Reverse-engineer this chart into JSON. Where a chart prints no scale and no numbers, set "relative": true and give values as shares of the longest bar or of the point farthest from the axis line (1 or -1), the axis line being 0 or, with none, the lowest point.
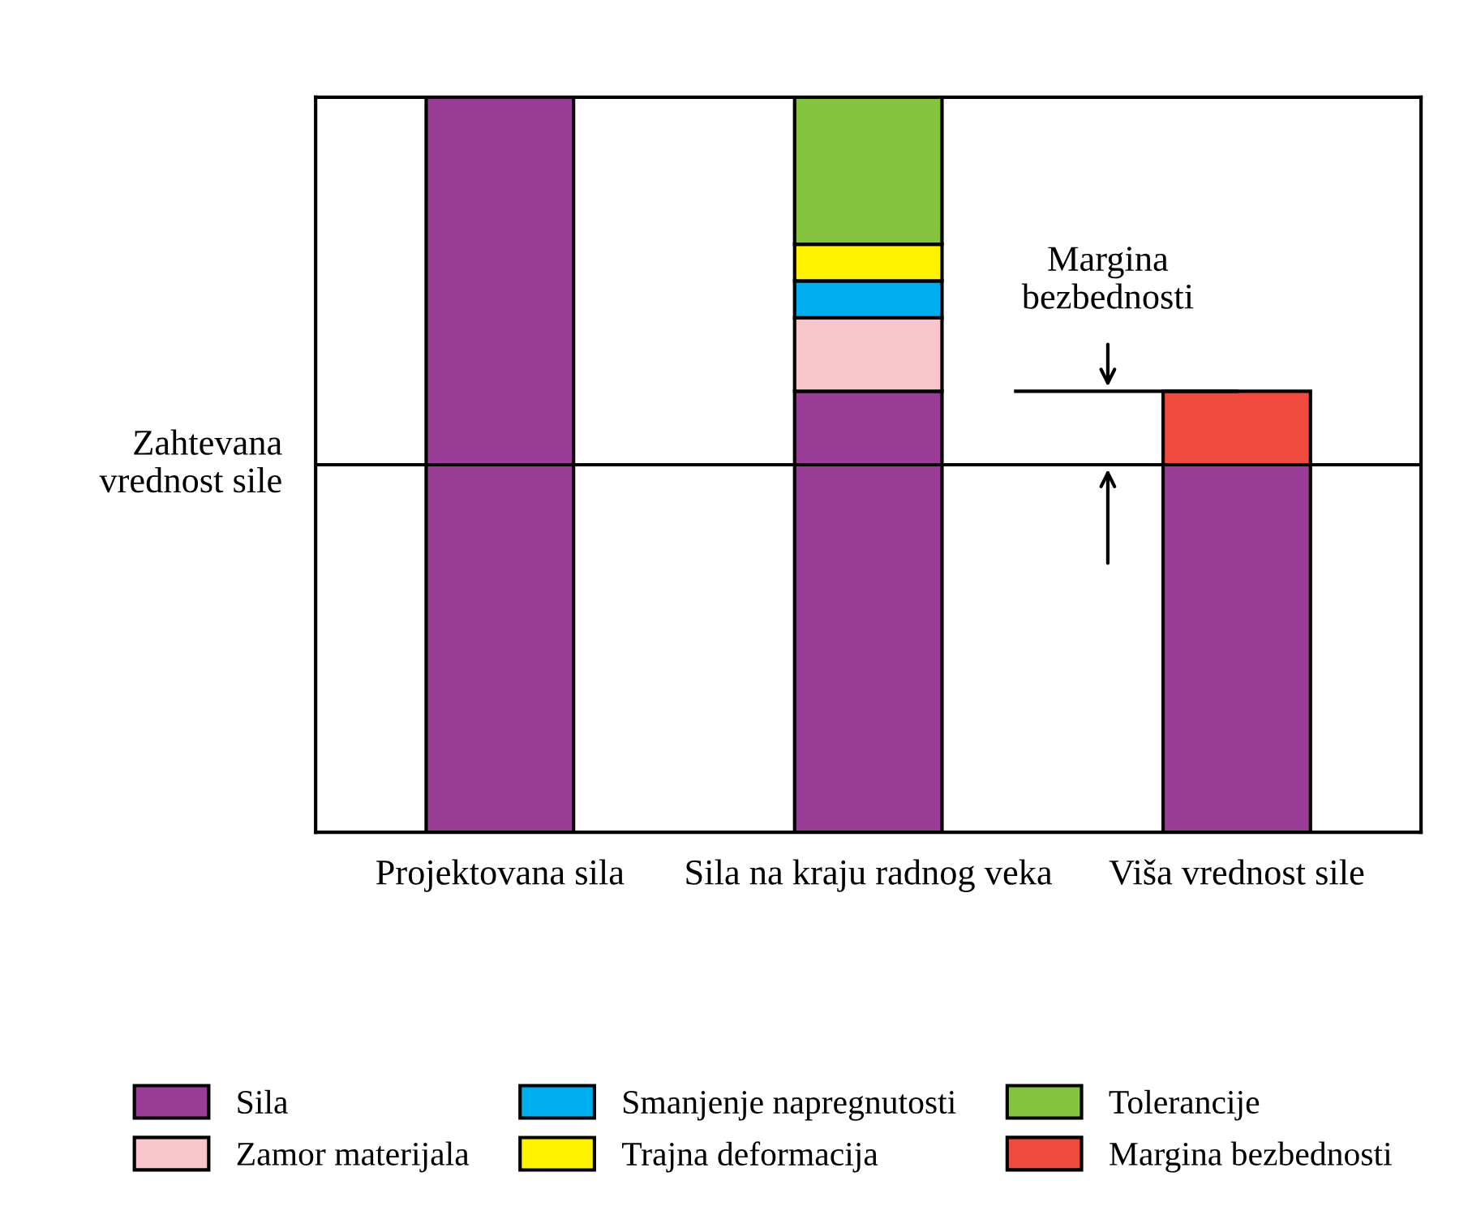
{
  "chart_data": {
    "type": "bar",
    "stacked": true,
    "relative": true,
    "categories": [
      "Projektovana sila",
      "Sila na kraju radnog veka",
      "Viša vrednost sile"
    ],
    "series": [
      {
        "name": "Sila",
        "color": "#9b3d96",
        "values": [
          1,
          0.6,
          0.5
        ]
      },
      {
        "name": "Zamor materijala",
        "color": "#f7c5cb",
        "values": [
          0,
          0.1,
          0
        ]
      },
      {
        "name": "Smanjenje napregnutosti",
        "color": "#00aeef",
        "values": [
          0,
          0.05,
          0
        ]
      },
      {
        "name": "Trajna deformacija",
        "color": "#fff200",
        "values": [
          0,
          0.05,
          0
        ]
      },
      {
        "name": "Tolerancije",
        "color": "#86c440",
        "values": [
          0,
          0.2,
          0
        ]
      },
      {
        "name": "Margina bezbednosti",
        "color": "#ef4a3d",
        "values": [
          0,
          0,
          0.1
        ]
      }
    ],
    "ref_lines": [
      {
        "axis": "y",
        "value": 0.5,
        "label": "Zahtevana vrednost sile",
        "color": "#000000"
      },
      {
        "axis": "y",
        "value": 0.6,
        "color": "#000000"
      }
    ],
    "annotations": [
      "Margina bezbednosti"
    ],
    "legend": "bottom",
    "grid": false
  }
}
